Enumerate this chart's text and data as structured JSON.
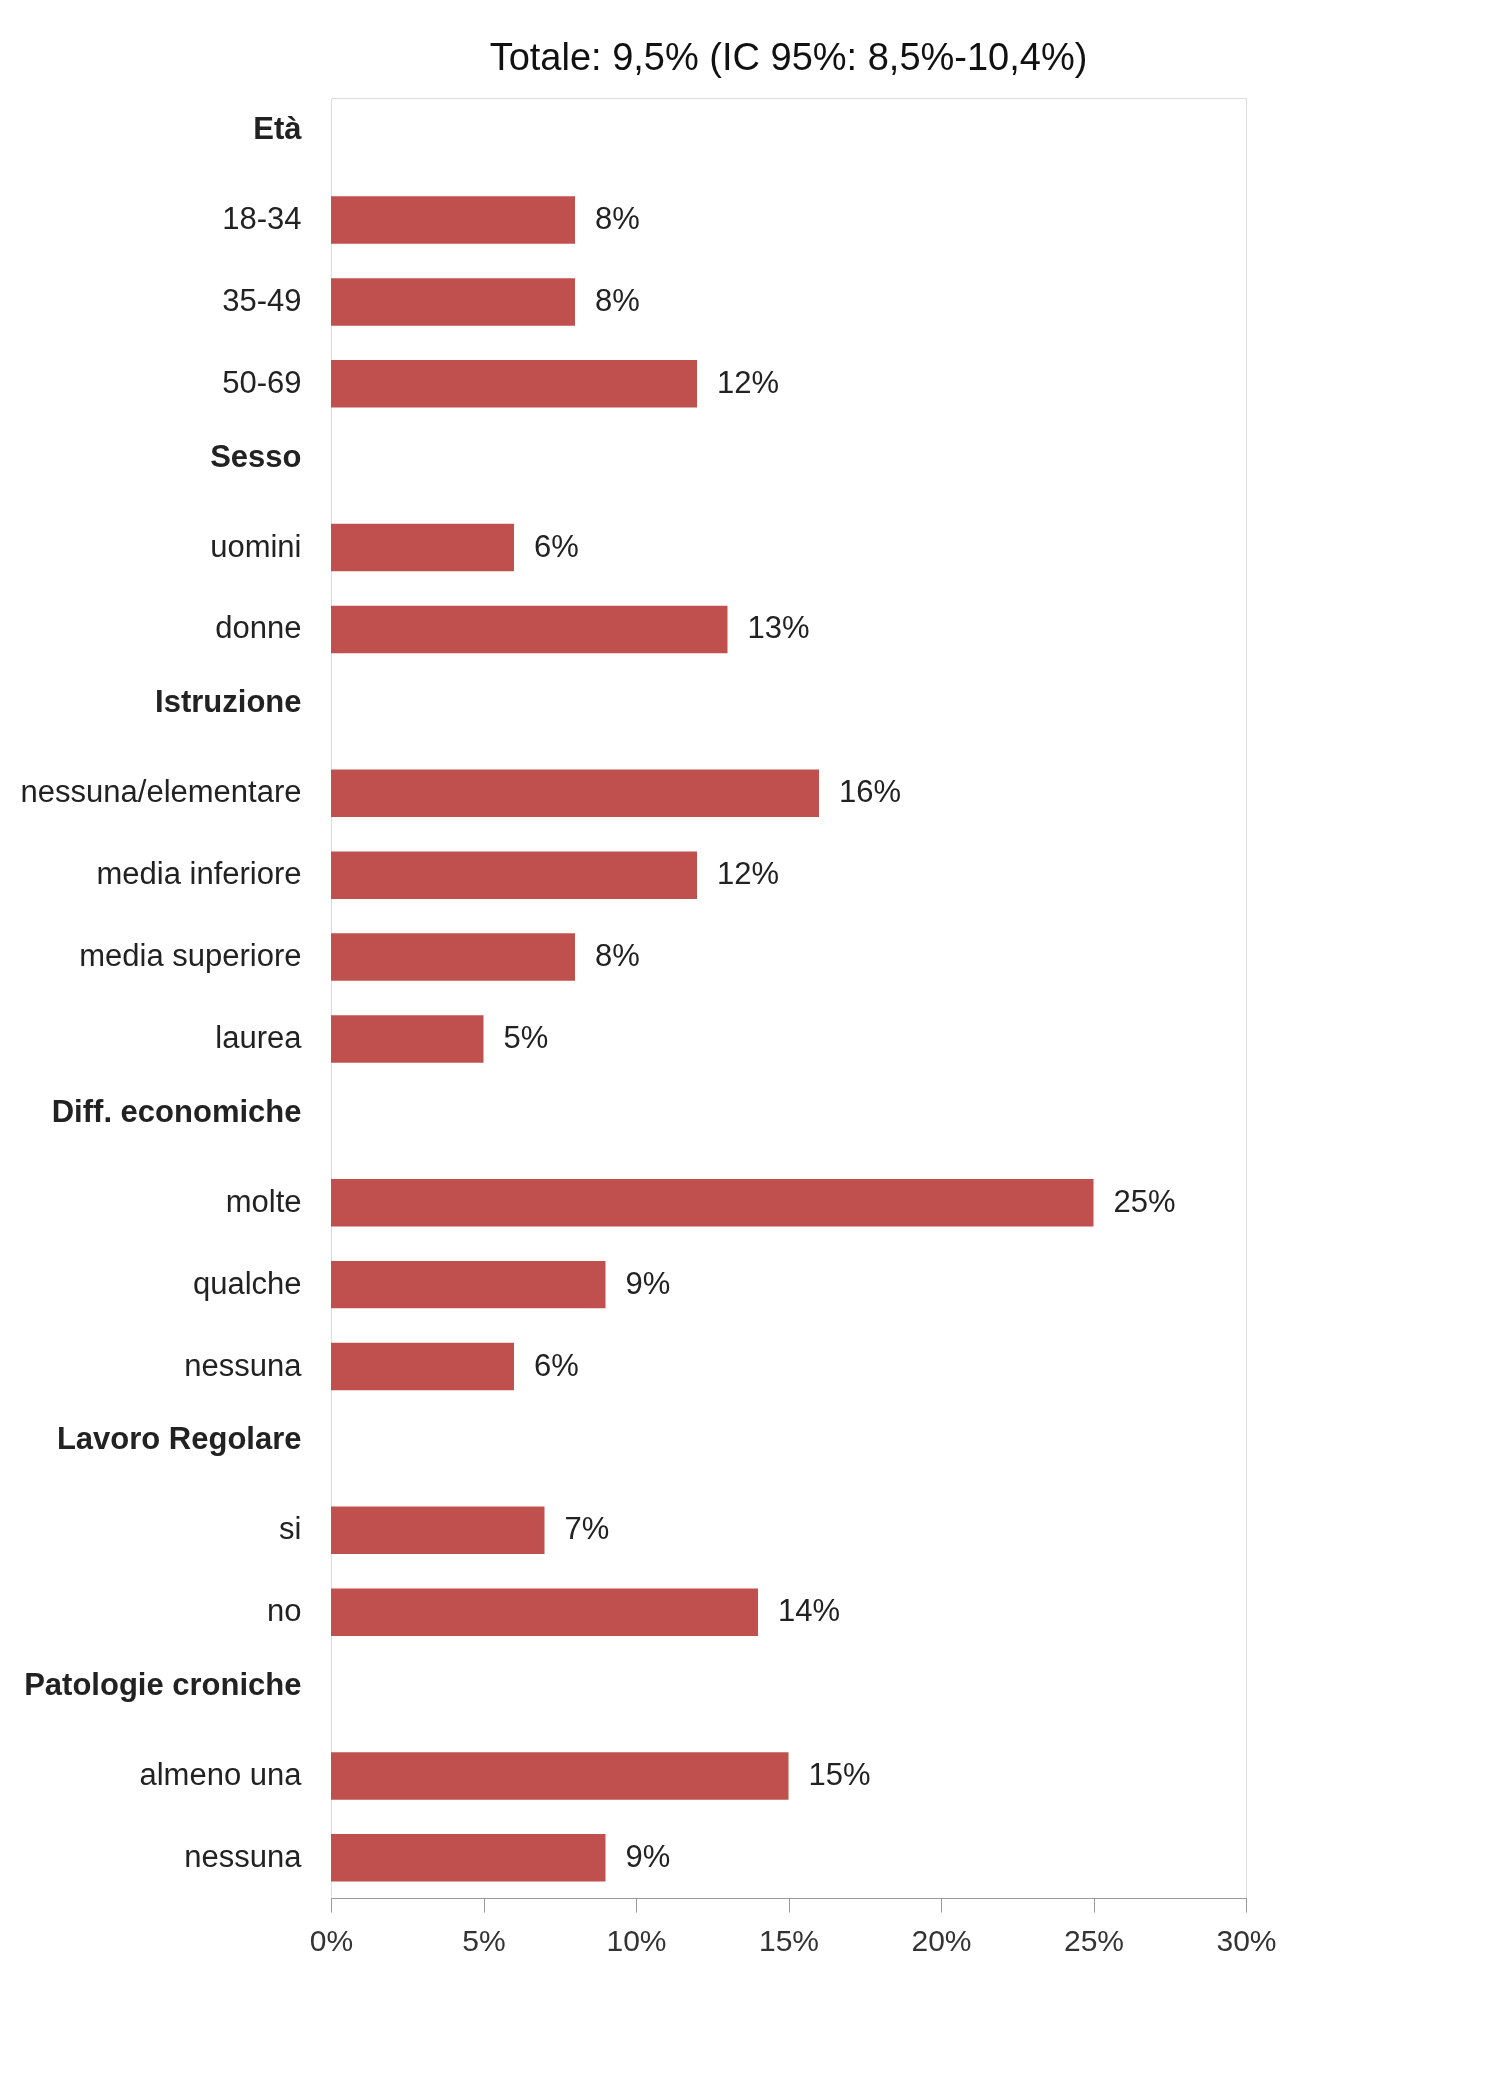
{
  "chart_data": {
    "type": "bar",
    "orientation": "horizontal",
    "title": "Totale: 9,5% (IC 95%: 8,5%-10,4%)",
    "categories": [
      "Età",
      "18-34",
      "35-49",
      "50-69",
      "Sesso",
      "uomini",
      "donne",
      "Istruzione",
      "nessuna/elementare",
      "media inferiore",
      "media superiore",
      "laurea",
      "Diff. economiche",
      "molte",
      "qualche",
      "nessuna",
      "Lavoro Regolare",
      "si",
      "no",
      "Patologie croniche",
      "almeno una",
      "nessuna"
    ],
    "values": [
      null,
      8,
      8,
      12,
      null,
      6,
      13,
      null,
      16,
      12,
      8,
      5,
      null,
      25,
      9,
      6,
      null,
      7,
      14,
      null,
      15,
      9
    ],
    "value_labels": [
      null,
      "8%",
      "8%",
      "12%",
      null,
      "6%",
      "13%",
      null,
      "16%",
      "12%",
      "8%",
      "5%",
      null,
      "25%",
      "9%",
      "6%",
      null,
      "7%",
      "14%",
      null,
      "15%",
      "9%"
    ],
    "color": "#c0504d",
    "xlim": [
      0,
      30
    ],
    "xticks": [
      {
        "value": 0,
        "label": "0%"
      },
      {
        "value": 5,
        "label": "5%"
      },
      {
        "value": 10,
        "label": "10%"
      },
      {
        "value": 15,
        "label": "15%"
      },
      {
        "value": 20,
        "label": "20%"
      },
      {
        "value": 25,
        "label": "25%"
      },
      {
        "value": 30,
        "label": "30%"
      }
    ],
    "grid": false
  }
}
